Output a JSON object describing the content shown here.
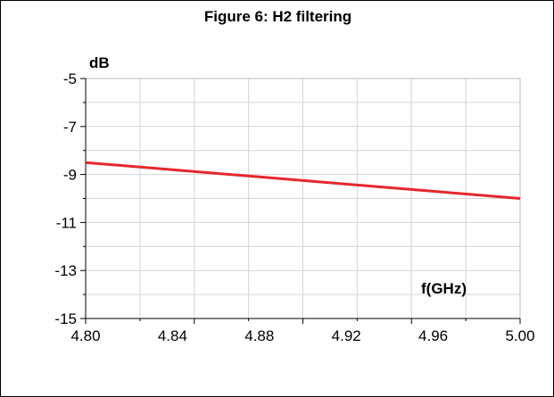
{
  "figure": {
    "title": "Figure 6: H2 filtering"
  },
  "chart_data": {
    "type": "line",
    "title": "Figure 6: H2 filtering",
    "xlabel": "f(GHz)",
    "ylabel": "dB",
    "xlim": [
      4.8,
      5.0
    ],
    "ylim": [
      -15,
      -5
    ],
    "x_ticks": [
      4.8,
      4.84,
      4.88,
      4.92,
      4.96,
      5.0
    ],
    "x_tick_labels": [
      "4.80",
      "4.84",
      "4.88",
      "4.92",
      "4.96",
      "5.00"
    ],
    "y_ticks": [
      -5,
      -7,
      -9,
      -11,
      -13,
      -15
    ],
    "y_tick_labels": [
      "-5",
      "-7",
      "-9",
      "-11",
      "-13",
      "-15"
    ],
    "grid": true,
    "legend": "none",
    "series": [
      {
        "color": "#e8262b",
        "x": [
          4.8,
          4.84,
          4.88,
          4.92,
          4.96,
          5.0
        ],
        "y": [
          -8.5,
          -8.8,
          -9.1,
          -9.4,
          -9.7,
          -10.0
        ]
      }
    ]
  }
}
